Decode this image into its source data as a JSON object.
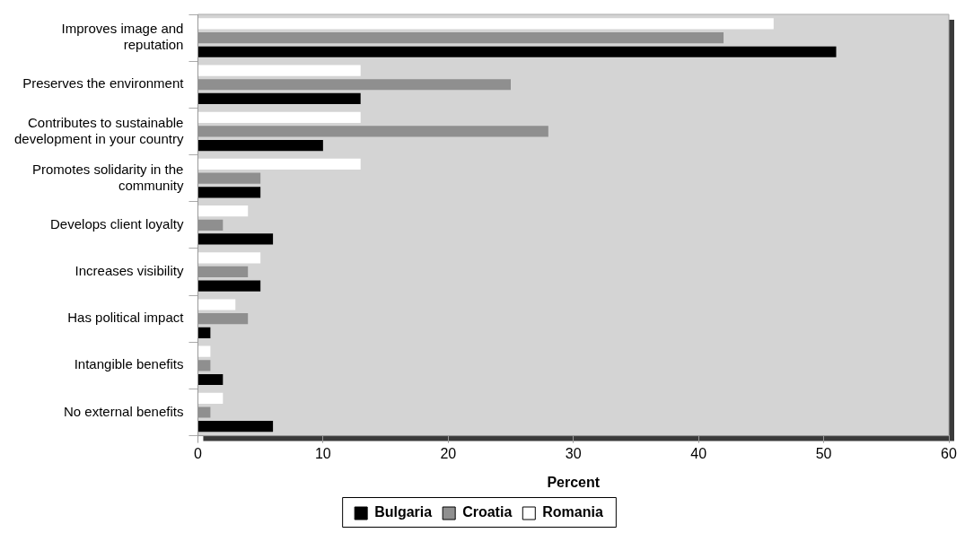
{
  "chart_data": {
    "type": "bar",
    "orientation": "horizontal",
    "xlabel": "Percent",
    "categories": [
      "Improves image and reputation",
      "Preserves the environment",
      "Contributes to sustainable development in your country",
      "Promotes solidarity in the community",
      "Develops client loyalty",
      "Increases visibility",
      "Has political impact",
      "Intangible benefits",
      "No external benefits"
    ],
    "series": [
      {
        "name": "Bulgaria",
        "color": "#000000",
        "values": [
          51,
          13,
          10,
          5,
          6,
          5,
          1,
          2,
          6
        ]
      },
      {
        "name": "Croatia",
        "color": "#8f8f8f",
        "values": [
          42,
          25,
          28,
          5,
          2,
          4,
          4,
          1,
          1
        ]
      },
      {
        "name": "Romania",
        "color": "#ffffff",
        "values": [
          46,
          13,
          13,
          13,
          4,
          5,
          3,
          1,
          2
        ]
      }
    ],
    "xlim": [
      0,
      60
    ],
    "xticks": [
      0,
      10,
      20,
      30,
      40,
      50,
      60
    ],
    "grid": false,
    "legend": "bottom"
  }
}
